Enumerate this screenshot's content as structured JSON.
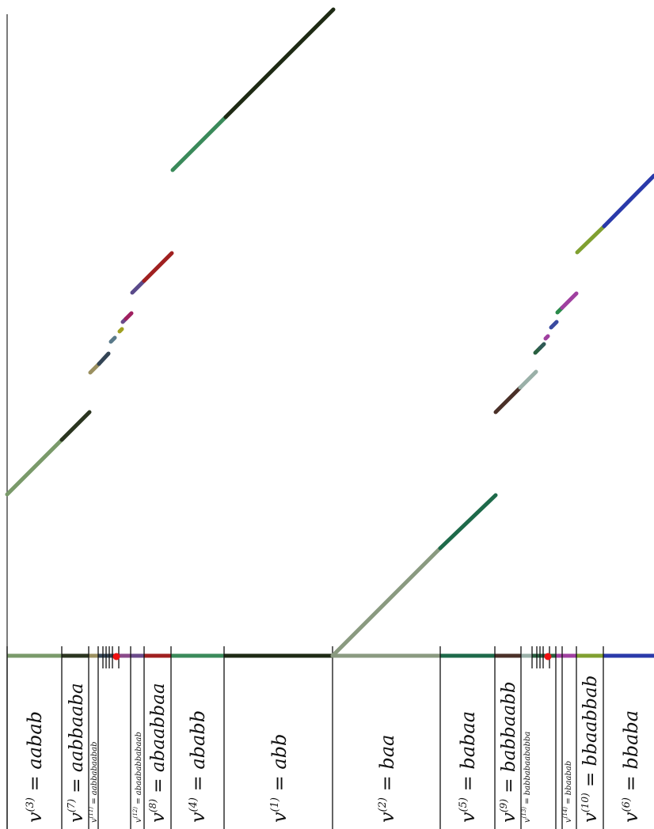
{
  "figure": {
    "labels": [
      {
        "text": "v^(3) = aabab"
      },
      {
        "text": "v^(7) = aabbaaba"
      },
      {
        "text": "v^(11) = aabbabaabab"
      },
      {
        "text": "v^(12) = abaababbabaab"
      },
      {
        "text": "v^(8) = abaabbaa"
      },
      {
        "text": "v^(4) = ababb"
      },
      {
        "text": "v^(1) = abb"
      },
      {
        "text": "v^(2) = baa"
      },
      {
        "text": "v^(5) = babaa"
      },
      {
        "text": "v^(9) = babbaabb"
      },
      {
        "text": "v^(13) = babbabaababba"
      },
      {
        "text": "v^(14) = bbaabab"
      },
      {
        "text": "v^(10) = bbaabbab"
      },
      {
        "text": "v^(6) = bbaba"
      }
    ]
  }
}
